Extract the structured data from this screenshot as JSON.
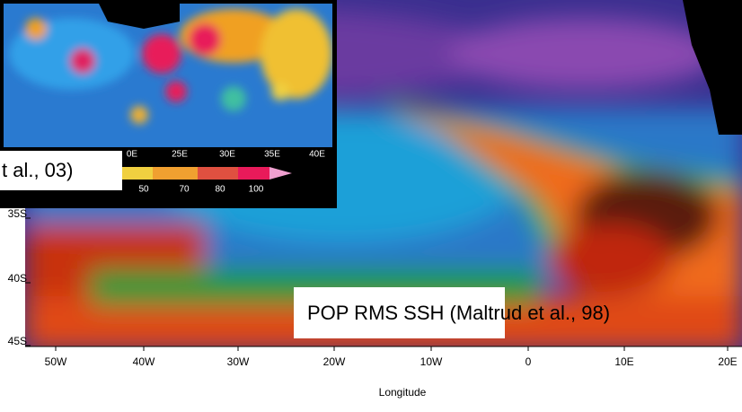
{
  "main_map": {
    "caption": "POP RMS SSH (Maltrud et al., 98)",
    "x_axis_label": "Longitude",
    "x_ticks": [
      "50W",
      "40W",
      "30W",
      "20W",
      "10W",
      "0",
      "10E",
      "20E"
    ],
    "y_ticks": [
      "35S",
      "40S",
      "45S"
    ]
  },
  "inset_map": {
    "caption": "t al., 03)",
    "x_ticks": [
      "0E",
      "25E",
      "30E",
      "35E",
      "40E"
    ],
    "colorbar_labels": [
      "50",
      "70",
      "80",
      "100"
    ]
  }
}
